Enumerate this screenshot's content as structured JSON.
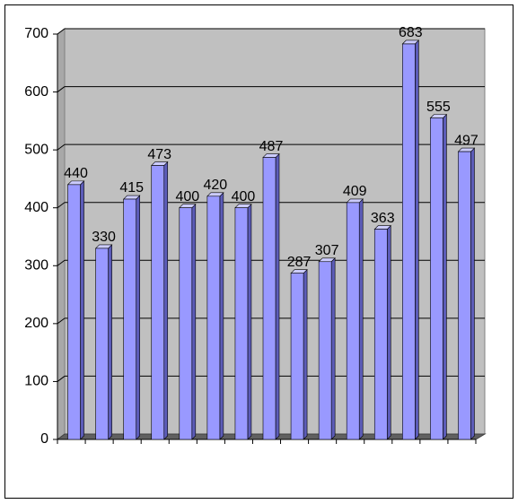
{
  "chart_data": {
    "type": "bar",
    "categories": [
      null,
      null,
      null,
      null,
      null,
      null,
      null,
      null,
      null,
      null,
      null,
      null,
      null,
      null,
      null
    ],
    "values": [
      440,
      330,
      415,
      473,
      400,
      420,
      400,
      487,
      287,
      307,
      409,
      363,
      683,
      555,
      497
    ],
    "color": "#9999ff",
    "ylim": [
      0,
      700
    ],
    "yticks": [
      0,
      100,
      200,
      300,
      400,
      500,
      600,
      700
    ],
    "grid": true
  }
}
